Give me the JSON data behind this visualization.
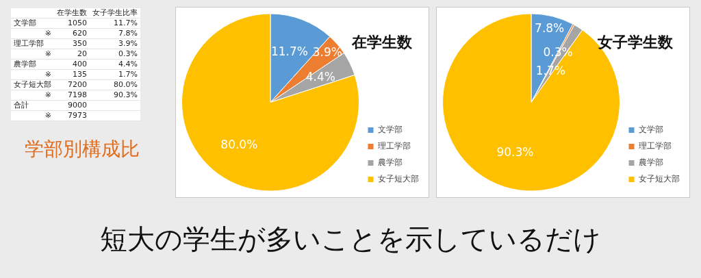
{
  "chart_data": [
    {
      "type": "other",
      "title": "学部別構成比",
      "categories": [
        "文学部",
        "※",
        "理工学部",
        "※",
        "農学部",
        "※",
        "女子短大部",
        "※",
        "合計",
        "※"
      ],
      "data_labels": true,
      "series": [
        {
          "name": "在学生数",
          "values": [
            1050,
            620,
            350,
            20,
            400,
            135,
            7200,
            7198,
            9000,
            7973
          ]
        },
        {
          "name": "女子学生比率",
          "values": [
            11.7,
            7.8,
            3.9,
            0.3,
            4.4,
            1.7,
            80.0,
            90.3,
            null,
            null
          ],
          "value_labels": [
            "11.7%",
            "7.8%",
            "3.9%",
            "0.3%",
            "4.4%",
            "1.7%",
            "80.0%",
            "90.3%",
            null,
            null
          ]
        }
      ],
      "annotations": [
        "短大の学生が多いことを示しているだけ"
      ]
    },
    {
      "type": "pie",
      "title": "在学生数",
      "categories": [
        "文学部",
        "理工学部",
        "農学部",
        "女子短大部"
      ],
      "values": [
        11.7,
        3.9,
        4.4,
        80.0
      ],
      "value_labels": [
        "11.7%",
        "3.9%",
        "4.4%",
        "80.0%"
      ],
      "colors": [
        "#5b9bd5",
        "#ed7d31",
        "#a5a5a5",
        "#ffc000"
      ],
      "legend": "bottom right"
    },
    {
      "type": "pie",
      "title": "女子学生数",
      "categories": [
        "文学部",
        "理工学部",
        "農学部",
        "女子短大部"
      ],
      "values": [
        7.8,
        0.3,
        1.7,
        90.3
      ],
      "value_labels": [
        "7.8%",
        "0.3%",
        "1.7%",
        "90.3%"
      ],
      "colors": [
        "#5b9bd5",
        "#ed7d31",
        "#a5a5a5",
        "#ffc000"
      ],
      "legend": "bottom right"
    }
  ]
}
